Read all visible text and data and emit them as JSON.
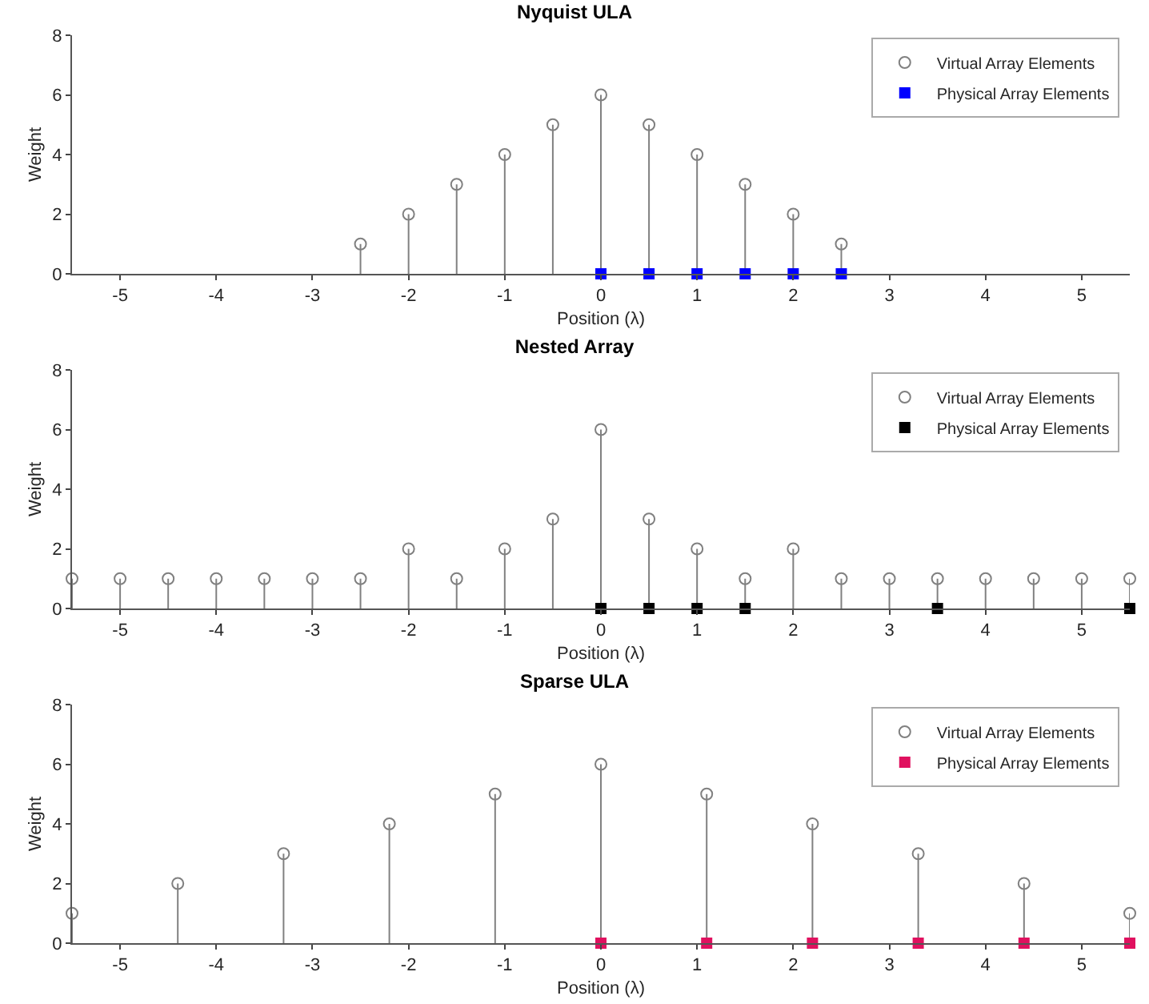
{
  "chart_data": [
    {
      "type": "lollipop",
      "title": "Nyquist ULA",
      "xlabel": "Position (λ)",
      "ylabel": "Weight",
      "xlim": [
        -5.5,
        5.5
      ],
      "xticks": [
        -5,
        -4,
        -3,
        -2,
        -1,
        0,
        1,
        2,
        3,
        4,
        5
      ],
      "ylim": [
        0,
        8
      ],
      "yticks": [
        0,
        2,
        4,
        6,
        8
      ],
      "legend": "top right",
      "x": [
        -2.5,
        -2,
        -1.5,
        -1,
        -0.5,
        0,
        0.5,
        1,
        1.5,
        2,
        2.5
      ],
      "series": [
        {
          "name": "Virtual Array Elements",
          "color": "#808080",
          "marker": "circle",
          "values": [
            1,
            2,
            3,
            4,
            5,
            6,
            5,
            4,
            3,
            2,
            1
          ]
        },
        {
          "name": "Physical Array Elements",
          "type": "scatter",
          "color": "#0000ff",
          "marker": "square",
          "x": [
            0,
            0.5,
            1,
            1.5,
            2,
            2.5
          ],
          "values": [
            0,
            0,
            0,
            0,
            0,
            0
          ]
        }
      ]
    },
    {
      "type": "lollipop",
      "title": "Nested Array",
      "xlabel": "Position (λ)",
      "ylabel": "Weight",
      "xlim": [
        -5.5,
        5.5
      ],
      "xticks": [
        -5,
        -4,
        -3,
        -2,
        -1,
        0,
        1,
        2,
        3,
        4,
        5
      ],
      "ylim": [
        0,
        8
      ],
      "yticks": [
        0,
        2,
        4,
        6,
        8
      ],
      "legend": "top right",
      "x": [
        -5.5,
        -5,
        -4.5,
        -4,
        -3.5,
        -3,
        -2.5,
        -2,
        -1.5,
        -1,
        -0.5,
        0,
        0.5,
        1,
        1.5,
        2,
        2.5,
        3,
        3.5,
        4,
        4.5,
        5,
        5.5
      ],
      "series": [
        {
          "name": "Virtual Array Elements",
          "color": "#808080",
          "marker": "circle",
          "values": [
            1,
            1,
            1,
            1,
            1,
            1,
            1,
            2,
            1,
            2,
            3,
            6,
            3,
            2,
            1,
            2,
            1,
            1,
            1,
            1,
            1,
            1,
            1
          ]
        },
        {
          "name": "Physical Array Elements",
          "type": "scatter",
          "color": "#000000",
          "marker": "square",
          "x": [
            0,
            0.5,
            1,
            1.5,
            3.5,
            5.5
          ],
          "values": [
            0,
            0,
            0,
            0,
            0,
            0
          ]
        }
      ]
    },
    {
      "type": "lollipop",
      "title": "Sparse ULA",
      "xlabel": "Position (λ)",
      "ylabel": "Weight",
      "xlim": [
        -5.5,
        5.5
      ],
      "xticks": [
        -5,
        -4,
        -3,
        -2,
        -1,
        0,
        1,
        2,
        3,
        4,
        5
      ],
      "ylim": [
        0,
        8
      ],
      "yticks": [
        0,
        2,
        4,
        6,
        8
      ],
      "legend": "top right",
      "x": [
        -5.5,
        -4.4,
        -3.3,
        -2.2,
        -1.1,
        0,
        1.1,
        2.2,
        3.3,
        4.4,
        5.5
      ],
      "series": [
        {
          "name": "Virtual Array Elements",
          "color": "#808080",
          "marker": "circle",
          "values": [
            1,
            2,
            3,
            4,
            5,
            6,
            5,
            4,
            3,
            2,
            1
          ]
        },
        {
          "name": "Physical Array Elements",
          "type": "scatter",
          "color": "#e0115f",
          "marker": "square",
          "x": [
            0,
            1.1,
            2.2,
            3.3,
            4.4,
            5.5
          ],
          "values": [
            0,
            0,
            0,
            0,
            0,
            0
          ]
        }
      ]
    }
  ]
}
